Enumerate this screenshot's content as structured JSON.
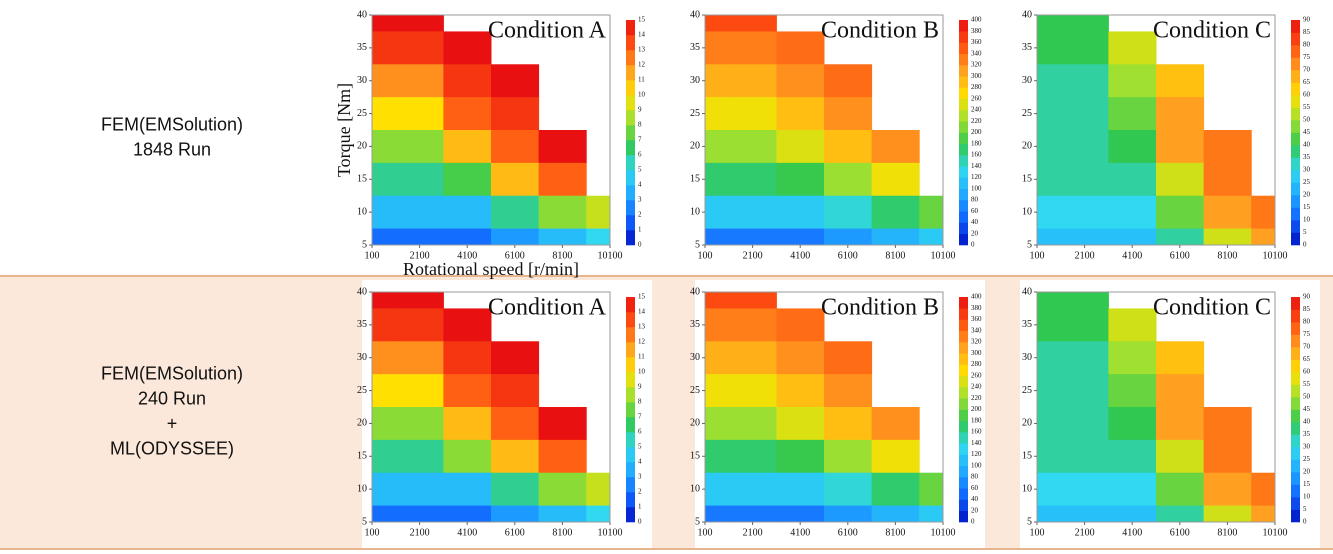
{
  "rows": [
    {
      "lines": [
        "FEM(EMSolution)",
        "1848 Run"
      ]
    },
    {
      "lines": [
        "FEM(EMSolution)",
        "240 Run",
        "+",
        "ML(ODYSSEE)"
      ]
    }
  ],
  "colormap": [
    "#0010c0",
    "#1060ff",
    "#20a8ff",
    "#30d8f0",
    "#30c850",
    "#a0e030",
    "#ffe000",
    "#ffa020",
    "#ff5010",
    "#e81010"
  ],
  "chart_data": [
    {
      "type": "contour",
      "title": "Condition A",
      "ylabel": "Torque [Nm]",
      "xlabel": "Rotational speed [r/min]",
      "xlim": [
        100,
        10100
      ],
      "ylim": [
        5,
        40
      ],
      "xticks": [
        100,
        2100,
        4100,
        6100,
        8100,
        10100
      ],
      "yticks": [
        5,
        10,
        15,
        20,
        25,
        30,
        35,
        40
      ],
      "x": [
        100,
        2100,
        4100,
        6100,
        8100,
        10100
      ],
      "y": [
        40,
        35,
        30,
        25,
        20,
        15,
        10,
        5
      ],
      "z": [
        [
          15,
          15,
          null,
          null,
          null,
          null
        ],
        [
          14,
          14,
          15,
          null,
          null,
          null
        ],
        [
          12,
          12,
          14,
          15,
          null,
          null
        ],
        [
          10,
          10,
          13,
          14,
          null,
          null
        ],
        [
          8,
          8,
          11,
          13,
          15,
          null
        ],
        [
          6,
          6,
          7,
          11,
          13,
          null
        ],
        [
          4,
          4,
          4,
          6,
          8,
          9
        ],
        [
          2,
          2,
          2,
          3,
          4,
          5
        ]
      ],
      "zlim": [
        0,
        15
      ],
      "zticks": [
        0,
        1,
        2,
        3,
        4,
        5,
        6,
        7,
        8,
        9,
        10,
        11,
        12,
        13,
        14,
        15
      ]
    },
    {
      "type": "contour",
      "title": "Condition B",
      "xlim": [
        100,
        10100
      ],
      "ylim": [
        5,
        40
      ],
      "xticks": [
        100,
        2100,
        4100,
        6100,
        8100,
        10100
      ],
      "yticks": [
        5,
        10,
        15,
        20,
        25,
        30,
        35,
        40
      ],
      "x": [
        100,
        2100,
        4100,
        6100,
        8100,
        10100
      ],
      "y": [
        40,
        35,
        30,
        25,
        20,
        15,
        10,
        5
      ],
      "z": [
        [
          360,
          360,
          null,
          null,
          null,
          null
        ],
        [
          330,
          330,
          340,
          null,
          null,
          null
        ],
        [
          300,
          300,
          320,
          340,
          null,
          null
        ],
        [
          260,
          260,
          290,
          320,
          null,
          null
        ],
        [
          220,
          220,
          250,
          290,
          320,
          null
        ],
        [
          170,
          170,
          180,
          220,
          260,
          null
        ],
        [
          120,
          120,
          120,
          140,
          170,
          200
        ],
        [
          60,
          60,
          60,
          80,
          100,
          120
        ]
      ],
      "zlim": [
        0,
        400
      ],
      "zticks": [
        0,
        20,
        40,
        60,
        80,
        100,
        120,
        140,
        160,
        180,
        200,
        220,
        240,
        260,
        280,
        300,
        320,
        340,
        360,
        380,
        400
      ]
    },
    {
      "type": "contour",
      "title": "Condition C",
      "xlim": [
        100,
        10100
      ],
      "ylim": [
        5,
        40
      ],
      "xticks": [
        100,
        2100,
        4100,
        6100,
        8100,
        10100
      ],
      "yticks": [
        5,
        10,
        15,
        20,
        25,
        30,
        35,
        40
      ],
      "x": [
        100,
        2100,
        4100,
        6100,
        8100,
        10100
      ],
      "y": [
        40,
        35,
        30,
        25,
        20,
        15,
        10,
        5
      ],
      "z": [
        [
          40,
          40,
          null,
          null,
          null,
          null
        ],
        [
          40,
          40,
          55,
          null,
          null,
          null
        ],
        [
          35,
          35,
          50,
          65,
          null,
          null
        ],
        [
          35,
          35,
          45,
          70,
          null,
          null
        ],
        [
          35,
          35,
          40,
          70,
          75,
          null
        ],
        [
          35,
          35,
          35,
          55,
          75,
          null
        ],
        [
          30,
          30,
          30,
          45,
          70,
          75
        ],
        [
          25,
          25,
          25,
          35,
          55,
          70
        ]
      ],
      "zlim": [
        0,
        90
      ],
      "zticks": [
        0,
        5,
        10,
        15,
        20,
        25,
        30,
        35,
        40,
        45,
        50,
        55,
        60,
        65,
        70,
        75,
        80,
        85,
        90
      ]
    },
    {
      "type": "contour",
      "title": "Condition A",
      "xlim": [
        100,
        10100
      ],
      "ylim": [
        5,
        40
      ],
      "xticks": [
        100,
        2100,
        4100,
        6100,
        8100,
        10100
      ],
      "yticks": [
        5,
        10,
        15,
        20,
        25,
        30,
        35,
        40
      ],
      "x": [
        100,
        2100,
        4100,
        6100,
        8100,
        10100
      ],
      "y": [
        40,
        35,
        30,
        25,
        20,
        15,
        10,
        5
      ],
      "z": [
        [
          15,
          15,
          null,
          null,
          null,
          null
        ],
        [
          14,
          14,
          15,
          null,
          null,
          null
        ],
        [
          12,
          12,
          14,
          15,
          null,
          null
        ],
        [
          10,
          10,
          13,
          14,
          null,
          null
        ],
        [
          8,
          8,
          11,
          13,
          15,
          null
        ],
        [
          6,
          6,
          8,
          11,
          13,
          null
        ],
        [
          4,
          4,
          4,
          6,
          8,
          9
        ],
        [
          2,
          2,
          2,
          3,
          4,
          5
        ]
      ],
      "zlim": [
        0,
        15
      ],
      "zticks": [
        0,
        1,
        2,
        3,
        4,
        5,
        6,
        7,
        8,
        9,
        10,
        11,
        12,
        13,
        14,
        15
      ]
    },
    {
      "type": "contour",
      "title": "Condition B",
      "xlim": [
        100,
        10100
      ],
      "ylim": [
        5,
        40
      ],
      "xticks": [
        100,
        2100,
        4100,
        6100,
        8100,
        10100
      ],
      "yticks": [
        5,
        10,
        15,
        20,
        25,
        30,
        35,
        40
      ],
      "x": [
        100,
        2100,
        4100,
        6100,
        8100,
        10100
      ],
      "y": [
        40,
        35,
        30,
        25,
        20,
        15,
        10,
        5
      ],
      "z": [
        [
          360,
          360,
          null,
          null,
          null,
          null
        ],
        [
          330,
          330,
          340,
          null,
          null,
          null
        ],
        [
          300,
          300,
          320,
          340,
          null,
          null
        ],
        [
          260,
          260,
          290,
          320,
          null,
          null
        ],
        [
          220,
          220,
          250,
          290,
          320,
          null
        ],
        [
          170,
          170,
          180,
          220,
          260,
          null
        ],
        [
          120,
          120,
          120,
          140,
          170,
          200
        ],
        [
          60,
          60,
          60,
          80,
          100,
          120
        ]
      ],
      "zlim": [
        0,
        400
      ],
      "zticks": [
        0,
        20,
        40,
        60,
        80,
        100,
        120,
        140,
        160,
        180,
        200,
        220,
        240,
        260,
        280,
        300,
        320,
        340,
        360,
        380,
        400
      ]
    },
    {
      "type": "contour",
      "title": "Condition C",
      "xlim": [
        100,
        10100
      ],
      "ylim": [
        5,
        40
      ],
      "xticks": [
        100,
        2100,
        4100,
        6100,
        8100,
        10100
      ],
      "yticks": [
        5,
        10,
        15,
        20,
        25,
        30,
        35,
        40
      ],
      "x": [
        100,
        2100,
        4100,
        6100,
        8100,
        10100
      ],
      "y": [
        40,
        35,
        30,
        25,
        20,
        15,
        10,
        5
      ],
      "z": [
        [
          40,
          40,
          null,
          null,
          null,
          null
        ],
        [
          40,
          40,
          55,
          null,
          null,
          null
        ],
        [
          35,
          35,
          50,
          65,
          null,
          null
        ],
        [
          35,
          35,
          45,
          70,
          null,
          null
        ],
        [
          35,
          35,
          40,
          70,
          75,
          null
        ],
        [
          35,
          35,
          35,
          55,
          75,
          null
        ],
        [
          30,
          30,
          30,
          45,
          70,
          75
        ],
        [
          25,
          25,
          25,
          35,
          55,
          70
        ]
      ],
      "zlim": [
        0,
        90
      ],
      "zticks": [
        0,
        5,
        10,
        15,
        20,
        25,
        30,
        35,
        40,
        45,
        50,
        55,
        60,
        65,
        70,
        75,
        80,
        85,
        90
      ]
    }
  ]
}
